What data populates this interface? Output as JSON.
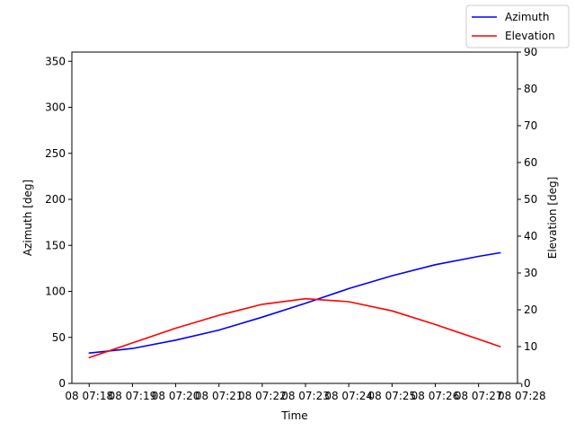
{
  "chart_data": {
    "type": "line",
    "title": "",
    "xlabel": "Time",
    "ylabel_left": "Azimuth [deg]",
    "ylabel_right": "Elevation [deg]",
    "x_ticks": [
      "08 07:18",
      "08 07:19",
      "08 07:20",
      "08 07:21",
      "08 07:22",
      "08 07:23",
      "08 07:24",
      "08 07:25",
      "08 07:26",
      "08 07:27",
      "08 07:28"
    ],
    "x_tick_times": [
      "07:18",
      "07:19",
      "07:20",
      "07:21",
      "07:22",
      "07:23",
      "07:24",
      "07:25",
      "07:26",
      "07:27",
      "07:28"
    ],
    "xlim": [
      "07:17.6",
      "07:27.9"
    ],
    "ylim_left": [
      0,
      360
    ],
    "yticks_left": [
      0,
      50,
      100,
      150,
      200,
      250,
      300,
      350
    ],
    "ylim_right": [
      0,
      90
    ],
    "yticks_right": [
      0,
      10,
      20,
      30,
      40,
      50,
      60,
      70,
      80,
      90
    ],
    "legend_position": "top-right",
    "grid": false,
    "x": [
      "07:18",
      "07:19",
      "07:20",
      "07:21",
      "07:22",
      "07:23",
      "07:24",
      "07:25",
      "07:26",
      "07:27",
      "07:27.5"
    ],
    "series": [
      {
        "name": "Azimuth",
        "axis": "left",
        "color": "#0000ff",
        "values": [
          33,
          38,
          47,
          58,
          72,
          87,
          103,
          117,
          129,
          138,
          142
        ]
      },
      {
        "name": "Elevation",
        "axis": "right",
        "color": "#ff0000",
        "values": [
          7,
          11,
          15,
          18.5,
          21.5,
          23,
          22.2,
          19.7,
          16,
          12,
          10
        ]
      }
    ]
  }
}
